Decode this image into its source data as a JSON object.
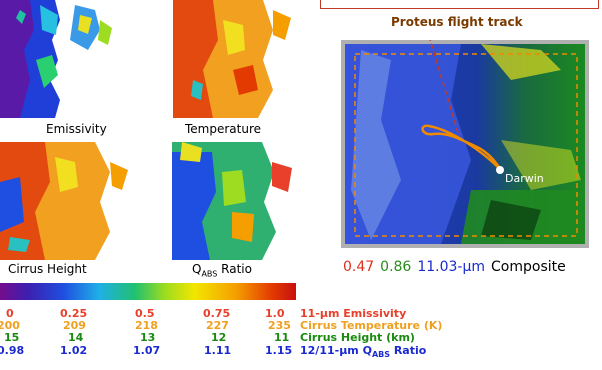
{
  "panels": {
    "emissivity": "Emissivity",
    "temperature": "Temperature",
    "cirrus_height": "Cirrus Height",
    "qabs_ratio": {
      "q": "Q",
      "sub": "ABS",
      "rest": " Ratio"
    }
  },
  "composite": {
    "title": "Proteus flight track",
    "location": "Darwin",
    "caption": {
      "r": "0.47",
      "g": "0.86",
      "b": "11.03-μm",
      "label": "Composite"
    },
    "colors": {
      "r": "#e0301e",
      "g": "#2a8a1a",
      "b": "#1a2ad0",
      "title": "#7a3b00",
      "track": "#f08a00"
    }
  },
  "scale": {
    "emissivity": {
      "values": [
        "0",
        "0.25",
        "0.5",
        "0.75",
        "1.0"
      ],
      "label": "11-μm Emissivity",
      "color": "#e8402a"
    },
    "temperature": {
      "values": [
        "200",
        "209",
        "218",
        "227",
        "235"
      ],
      "label": "Cirrus Temperature (K)",
      "color": "#f0a020"
    },
    "height": {
      "values": [
        "15",
        "14",
        "13",
        "12",
        "11"
      ],
      "label": "Cirrus Height (km)",
      "color": "#1a8a10"
    },
    "ratio": {
      "values": [
        "0.98",
        "1.02",
        "1.07",
        "1.11",
        "1.15"
      ],
      "label_pre": "12/11-μm Q",
      "label_sub": "ABS",
      "label_post": " Ratio",
      "color": "#1a2ad0"
    }
  }
}
